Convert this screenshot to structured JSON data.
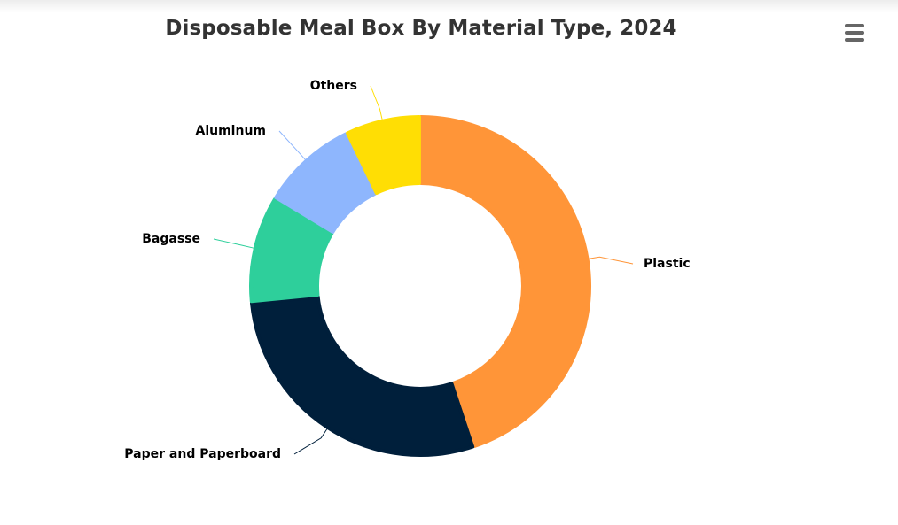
{
  "title": "Disposable Meal Box By Material Type, 2024",
  "menu": {
    "icon": "hamburger-menu-icon"
  },
  "chart_data": {
    "type": "pie",
    "variant": "donut",
    "title": "Disposable Meal Box By Material Type, 2024",
    "start_angle_deg": 0,
    "direction": "clockwise",
    "legend": "none",
    "labels": [
      "Plastic",
      "Paper and Paperboard",
      "Bagasse",
      "Aluminum",
      "Others"
    ],
    "values": [
      44,
      28,
      10,
      9,
      7
    ],
    "colors": [
      "#FF9538",
      "#001F3B",
      "#2ECF9B",
      "#8EB6FD",
      "#FFDE04"
    ]
  }
}
